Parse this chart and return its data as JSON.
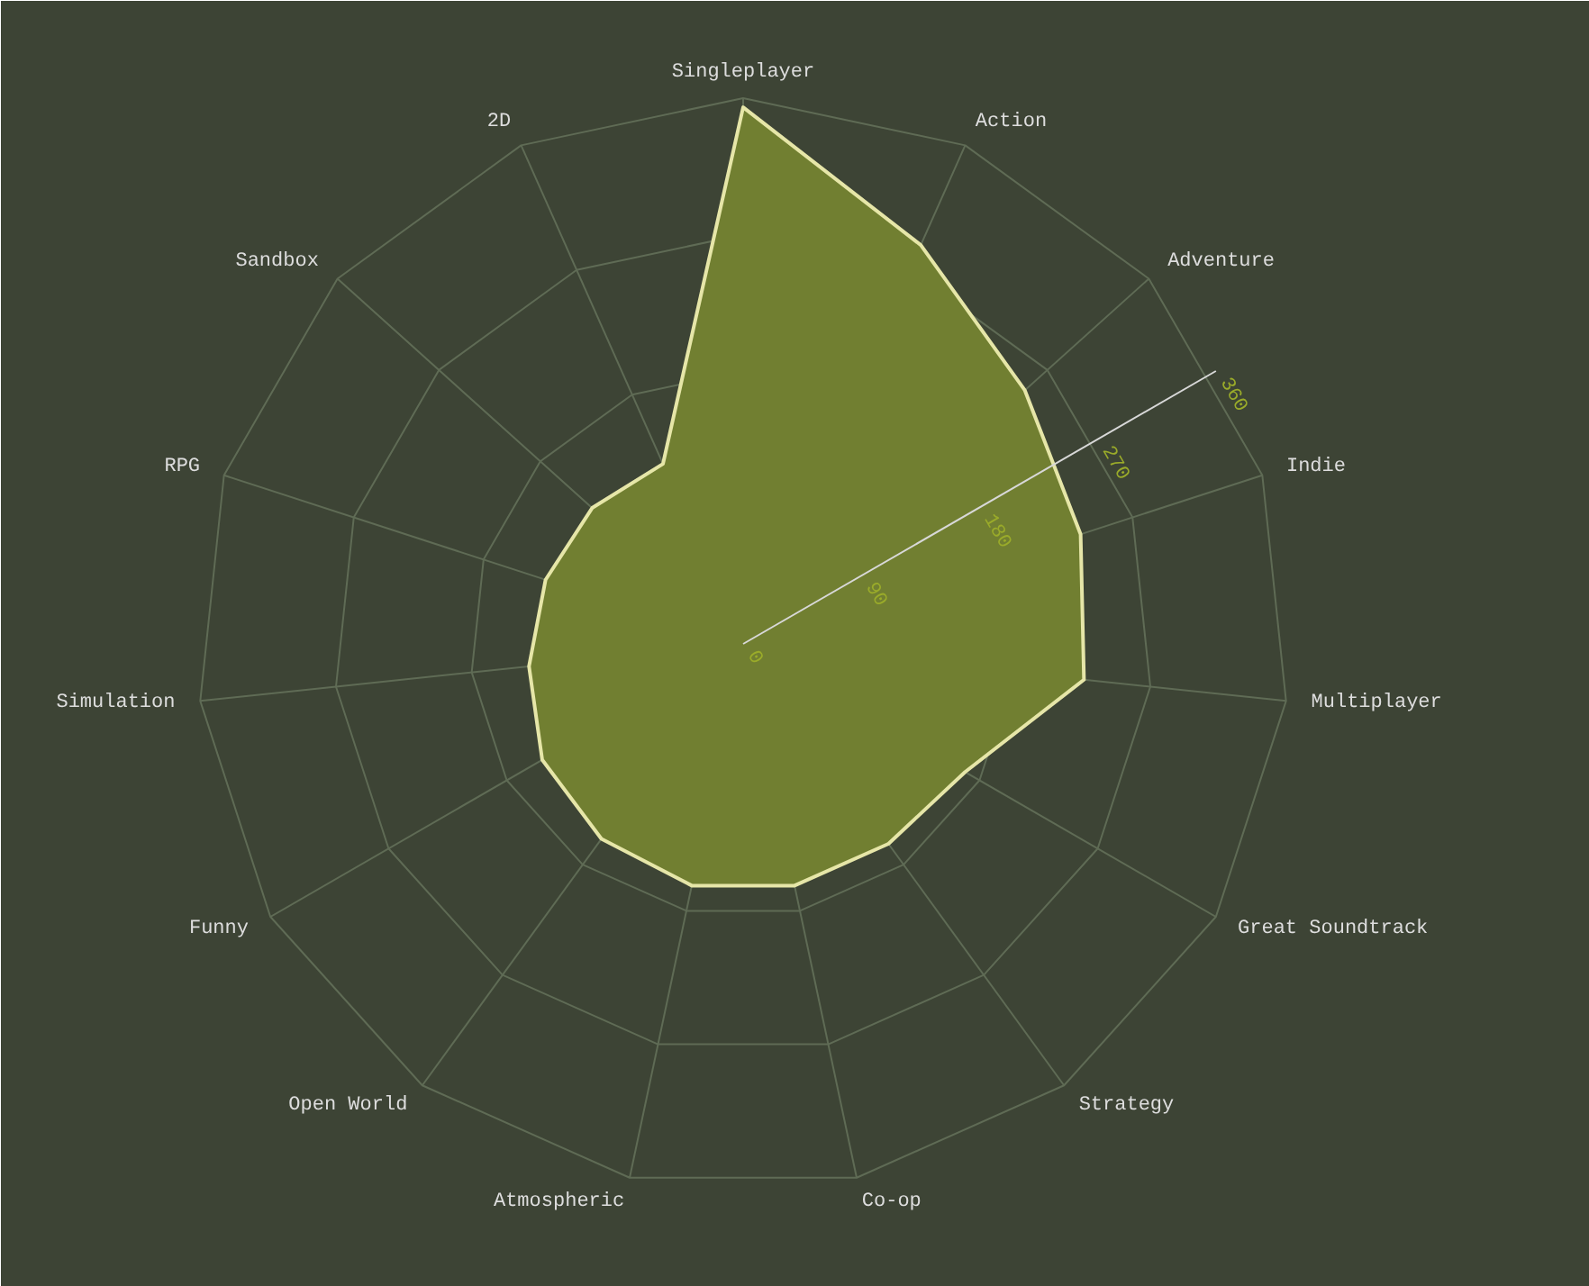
{
  "chart_data": {
    "type": "radar",
    "categories": [
      "Singleplayer",
      "Action",
      "Adventure",
      "Indie",
      "Multiplayer",
      "Great Soundtrack",
      "Strategy",
      "Co-op",
      "Atmospheric",
      "Open World",
      "Funny",
      "Simulation",
      "RPG",
      "Sandbox",
      "2D"
    ],
    "series": [
      {
        "color": "#717f31",
        "values": [
          354,
          288,
          250,
          234,
          226,
          169,
          163,
          163,
          163,
          159,
          153,
          142,
          137,
          134,
          130
        ]
      }
    ],
    "ylim": [
      0,
      360
    ],
    "yticks": [
      0,
      90,
      180,
      270,
      360
    ],
    "grid": true
  }
}
